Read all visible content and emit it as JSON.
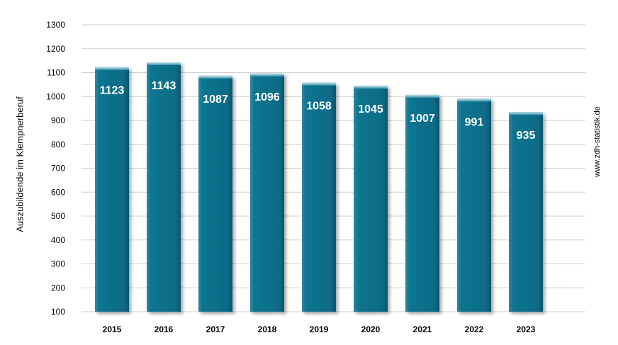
{
  "chart_data": {
    "type": "bar",
    "categories": [
      "2015",
      "2016",
      "2017",
      "2018",
      "2019",
      "2020",
      "2021",
      "2022",
      "2023"
    ],
    "values": [
      1123,
      1143,
      1087,
      1096,
      1058,
      1045,
      1007,
      991,
      935
    ],
    "ylabel": "Auszubildende im Klempnerberuf",
    "ylim": [
      100,
      1300
    ],
    "yticks": [
      100,
      200,
      300,
      400,
      500,
      600,
      700,
      800,
      900,
      1000,
      1100,
      1200,
      1300
    ],
    "grid": true,
    "legend": "none",
    "bar_color": "#0b6f8a",
    "data_labels": "inside-top"
  },
  "source_note": "www.zdh-statistik.de"
}
